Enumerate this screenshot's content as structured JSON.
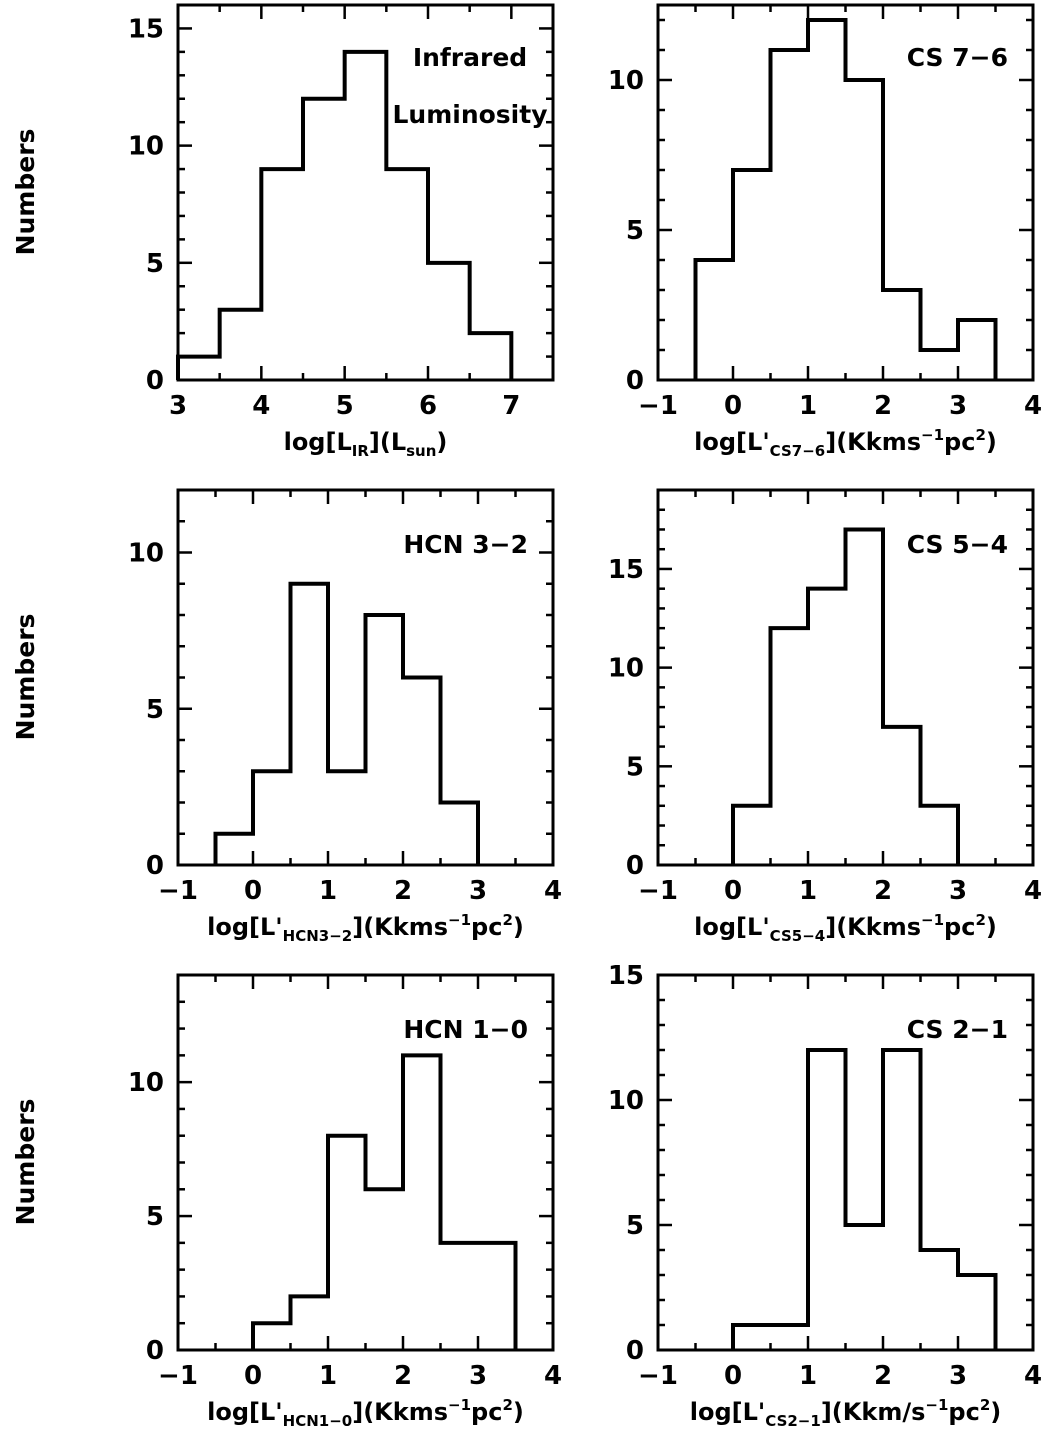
{
  "figure": {
    "ylabel": "Numbers"
  },
  "chart_data": [
    {
      "type": "histogram",
      "title_lines": [
        "Infrared",
        "Luminosity"
      ],
      "xlabel": {
        "main": "log[L",
        "sub1": "IR",
        "mid": "](L",
        "sub2": "sun",
        "end": ")"
      },
      "xlim": [
        3,
        7.5
      ],
      "ylim": [
        0,
        16
      ],
      "xticks": [
        3,
        4,
        5,
        6,
        7
      ],
      "yticks": [
        0,
        5,
        10,
        15
      ],
      "edges": [
        3,
        3.5,
        4,
        4.5,
        5,
        5.5,
        6,
        6.5,
        7
      ],
      "counts": [
        1,
        3,
        9,
        12,
        14,
        9,
        5,
        2
      ]
    },
    {
      "type": "histogram",
      "title_lines": [
        "CS 7−6"
      ],
      "xlabel": {
        "main": "log[L'",
        "sub": "CS7−6",
        "end": "](Kkms",
        "sup1": "−1",
        "mid2": "pc",
        "sup2": "2",
        "tail": ")"
      },
      "xlim": [
        -1,
        4
      ],
      "ylim": [
        0,
        12.5
      ],
      "xticks": [
        -1,
        0,
        1,
        2,
        3,
        4
      ],
      "yticks": [
        0,
        5,
        10
      ],
      "edges": [
        -0.5,
        0,
        0.5,
        1,
        1.5,
        2,
        2.5,
        3,
        3.5
      ],
      "counts": [
        4,
        7,
        11,
        12,
        10,
        3,
        1,
        2
      ]
    },
    {
      "type": "histogram",
      "title_lines": [
        "HCN 3−2"
      ],
      "xlabel": {
        "main": "log[L'",
        "sub": "HCN3−2",
        "end": "](Kkms",
        "sup1": "−1",
        "mid2": "pc",
        "sup2": "2",
        "tail": ")"
      },
      "xlim": [
        -1,
        4
      ],
      "ylim": [
        0,
        12
      ],
      "xticks": [
        -1,
        0,
        1,
        2,
        3,
        4
      ],
      "yticks": [
        0,
        5,
        10
      ],
      "edges": [
        -0.5,
        0,
        0.5,
        1,
        1.5,
        2,
        2.5,
        3
      ],
      "counts": [
        1,
        3,
        9,
        3,
        8,
        6,
        2
      ]
    },
    {
      "type": "histogram",
      "title_lines": [
        "CS 5−4"
      ],
      "xlabel": {
        "main": "log[L'",
        "sub": "CS5−4",
        "end": "](Kkms",
        "sup1": "−1",
        "mid2": "pc",
        "sup2": "2",
        "tail": ")"
      },
      "xlim": [
        -1,
        4
      ],
      "ylim": [
        0,
        19
      ],
      "xticks": [
        -1,
        0,
        1,
        2,
        3,
        4
      ],
      "yticks": [
        0,
        5,
        10,
        15
      ],
      "edges": [
        0,
        0.5,
        1,
        1.5,
        2,
        2.5,
        3
      ],
      "counts": [
        3,
        12,
        14,
        17,
        7,
        3
      ]
    },
    {
      "type": "histogram",
      "title_lines": [
        "HCN 1−0"
      ],
      "xlabel": {
        "main": "log[L'",
        "sub": "HCN1−0",
        "end": "](Kkms",
        "sup1": "−1",
        "mid2": "pc",
        "sup2": "2",
        "tail": ")"
      },
      "xlim": [
        -1,
        4
      ],
      "ylim": [
        0,
        14
      ],
      "xticks": [
        -1,
        0,
        1,
        2,
        3,
        4
      ],
      "yticks": [
        0,
        5,
        10
      ],
      "edges": [
        0,
        0.5,
        1,
        1.5,
        2,
        2.5,
        3,
        3.5
      ],
      "counts": [
        1,
        2,
        8,
        6,
        11,
        4,
        4
      ]
    },
    {
      "type": "histogram",
      "title_lines": [
        "CS 2−1"
      ],
      "xlabel": {
        "main": "log[L'",
        "sub": "CS2−1",
        "end": "](Kkm/s",
        "sup1": "−1",
        "mid2": "pc",
        "sup2": "2",
        "tail": ")"
      },
      "xlim": [
        -1,
        4
      ],
      "ylim": [
        0,
        15
      ],
      "xticks": [
        -1,
        0,
        1,
        2,
        3,
        4
      ],
      "yticks": [
        0,
        5,
        10,
        15
      ],
      "edges": [
        0,
        1,
        1.5,
        2,
        2.5,
        3,
        3.5
      ],
      "counts": [
        1,
        12,
        5,
        12,
        4,
        3
      ]
    }
  ]
}
